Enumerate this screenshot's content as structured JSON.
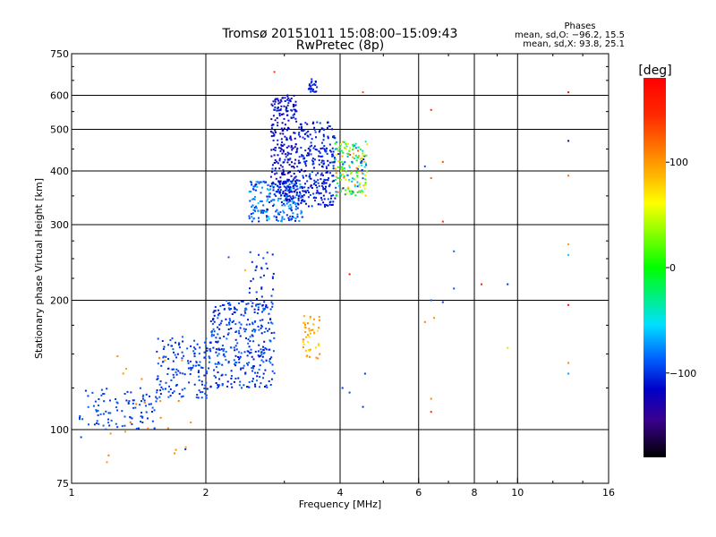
{
  "title": {
    "line1": "Tromsø 20151011 15:08:00–15:09:43",
    "line2": "RwPretec (8p)"
  },
  "stats": {
    "heading": "Phases",
    "line1": "mean, sd,O: −96.2, 15.5",
    "line2": "mean, sd,X:  93.8, 25.1"
  },
  "colorbar": {
    "label": "[deg]",
    "ticks": [
      "100",
      "0",
      "−100"
    ],
    "tick_values": [
      100,
      0,
      -100
    ],
    "range": [
      -180,
      180
    ]
  },
  "chart_data": {
    "type": "scatter",
    "xlabel": "Frequency [MHz]",
    "ylabel": "Stationary phase Virtual Height [km]",
    "xscale": "log",
    "yscale": "log",
    "xlim": [
      1,
      16
    ],
    "ylim": [
      75,
      750
    ],
    "x_ticks": [
      1,
      2,
      4,
      6,
      8,
      10,
      16
    ],
    "x_tick_labels": [
      "1",
      "2",
      "4",
      "6",
      "8",
      "10",
      "16"
    ],
    "y_ticks": [
      75,
      100,
      200,
      300,
      400,
      500,
      600,
      750
    ],
    "y_tick_labels": [
      "75",
      "100",
      "200",
      "300",
      "400",
      "500",
      "600",
      "750"
    ],
    "grid": true,
    "point_groups": [
      {
        "x": [
          1.04,
          1.55
        ],
        "y": [
          100,
          125
        ],
        "n": 95,
        "phase": [
          -105,
          -85
        ]
      },
      {
        "x": [
          1.55,
          2.05
        ],
        "y": [
          118,
          165
        ],
        "n": 150,
        "phase": [
          -110,
          -85
        ]
      },
      {
        "x": [
          2.05,
          2.85
        ],
        "y": [
          125,
          200
        ],
        "n": 320,
        "phase": [
          -115,
          -80
        ]
      },
      {
        "x": [
          2.5,
          2.85
        ],
        "y": [
          190,
          260
        ],
        "n": 35,
        "phase": [
          -110,
          -90
        ]
      },
      {
        "x": [
          2.5,
          3.3
        ],
        "y": [
          305,
          380
        ],
        "n": 230,
        "phase": [
          -115,
          -60
        ]
      },
      {
        "x": [
          2.8,
          3.2
        ],
        "y": [
          340,
          600
        ],
        "n": 260,
        "phase": [
          -130,
          -100
        ]
      },
      {
        "x": [
          3.2,
          3.9
        ],
        "y": [
          330,
          520
        ],
        "n": 270,
        "phase": [
          -120,
          -95
        ]
      },
      {
        "x": [
          3.4,
          3.55
        ],
        "y": [
          610,
          660
        ],
        "n": 25,
        "phase": [
          -115,
          -100
        ]
      },
      {
        "x": [
          3.9,
          4.6
        ],
        "y": [
          350,
          470
        ],
        "n": 170,
        "phase": [
          -110,
          120
        ]
      },
      {
        "x": [
          3.3,
          3.6
        ],
        "y": [
          145,
          185
        ],
        "n": 45,
        "phase": [
          70,
          110
        ]
      },
      {
        "x": [
          1.2,
          1.95
        ],
        "y": [
          85,
          150
        ],
        "n": 22,
        "phase": [
          90,
          120
        ]
      }
    ],
    "points": [
      {
        "x": 1.05,
        "y": 96,
        "phase": -95
      },
      {
        "x": 1.2,
        "y": 84,
        "phase": 100
      },
      {
        "x": 1.8,
        "y": 90,
        "phase": -100
      },
      {
        "x": 2.25,
        "y": 252,
        "phase": -90
      },
      {
        "x": 2.45,
        "y": 235,
        "phase": 90
      },
      {
        "x": 2.85,
        "y": 680,
        "phase": 140
      },
      {
        "x": 3.05,
        "y": 600,
        "phase": -110
      },
      {
        "x": 4.5,
        "y": 610,
        "phase": 130
      },
      {
        "x": 4.2,
        "y": 230,
        "phase": 170
      },
      {
        "x": 4.05,
        "y": 125,
        "phase": -100
      },
      {
        "x": 4.2,
        "y": 122,
        "phase": -95
      },
      {
        "x": 4.5,
        "y": 113,
        "phase": -100
      },
      {
        "x": 4.55,
        "y": 135,
        "phase": -100
      },
      {
        "x": 6.2,
        "y": 410,
        "phase": -90
      },
      {
        "x": 6.2,
        "y": 178,
        "phase": 110
      },
      {
        "x": 6.4,
        "y": 555,
        "phase": 150
      },
      {
        "x": 6.4,
        "y": 385,
        "phase": 120
      },
      {
        "x": 6.4,
        "y": 200,
        "phase": -90
      },
      {
        "x": 6.5,
        "y": 182,
        "phase": 105
      },
      {
        "x": 6.4,
        "y": 118,
        "phase": 110
      },
      {
        "x": 6.4,
        "y": 110,
        "phase": 150
      },
      {
        "x": 6.8,
        "y": 420,
        "phase": 130
      },
      {
        "x": 6.8,
        "y": 305,
        "phase": 150
      },
      {
        "x": 6.8,
        "y": 198,
        "phase": -100
      },
      {
        "x": 7.2,
        "y": 260,
        "phase": -85
      },
      {
        "x": 7.2,
        "y": 213,
        "phase": -90
      },
      {
        "x": 8.3,
        "y": 218,
        "phase": 150
      },
      {
        "x": 9.5,
        "y": 218,
        "phase": -100
      },
      {
        "x": 9.5,
        "y": 155,
        "phase": 40
      },
      {
        "x": 13,
        "y": 610,
        "phase": 170
      },
      {
        "x": 13,
        "y": 470,
        "phase": -150
      },
      {
        "x": 13,
        "y": 390,
        "phase": 120
      },
      {
        "x": 13,
        "y": 270,
        "phase": 100
      },
      {
        "x": 13,
        "y": 255,
        "phase": -60
      },
      {
        "x": 13,
        "y": 195,
        "phase": 170
      },
      {
        "x": 13,
        "y": 143,
        "phase": 110
      },
      {
        "x": 13,
        "y": 135,
        "phase": -70
      }
    ]
  }
}
